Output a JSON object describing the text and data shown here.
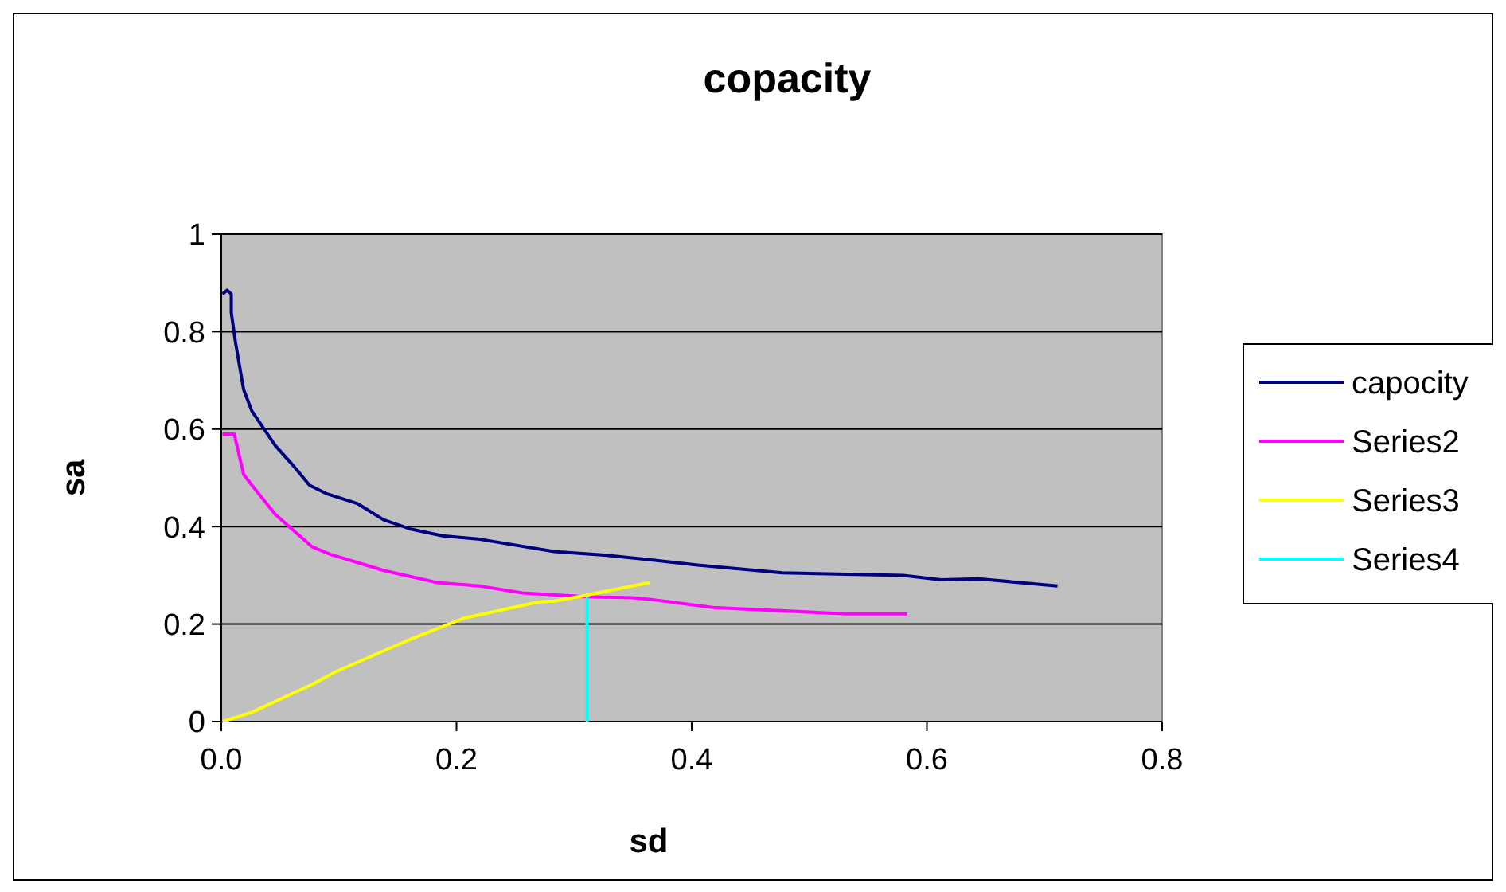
{
  "chart_data": {
    "type": "line",
    "title": "copacity",
    "xlabel": "sd",
    "ylabel": "sa",
    "xlim": [
      0,
      0.8
    ],
    "ylim": [
      0,
      1
    ],
    "xticks": [
      {
        "value": 0,
        "label": "0.0"
      },
      {
        "value": 0.2,
        "label": "0.2"
      },
      {
        "value": 0.4,
        "label": "0.4"
      },
      {
        "value": 0.6,
        "label": "0.6"
      },
      {
        "value": 0.8,
        "label": "0.8"
      }
    ],
    "yticks": [
      0,
      {
        "value": 0.2,
        "label": "0.2"
      },
      {
        "value": 0.4,
        "label": "0.4"
      },
      {
        "value": 0.6,
        "label": "0.6"
      },
      {
        "value": 0.8,
        "label": "0.8"
      },
      1
    ],
    "grid": "y",
    "legend": "right",
    "marker": "none",
    "line_style": "solid",
    "series": [
      {
        "name": "capocity",
        "color": "#000080",
        "x": [
          0.001,
          0.005,
          0.0085,
          0.0085,
          0.012,
          0.019,
          0.026,
          0.046,
          0.062,
          0.075,
          0.089,
          0.116,
          0.138,
          0.161,
          0.188,
          0.22,
          0.283,
          0.328,
          0.364,
          0.405,
          0.477,
          0.58,
          0.612,
          0.644,
          0.711
        ],
        "values": [
          0.877,
          0.885,
          0.877,
          0.839,
          0.779,
          0.681,
          0.637,
          0.566,
          0.523,
          0.485,
          0.468,
          0.447,
          0.414,
          0.395,
          0.381,
          0.374,
          0.349,
          0.341,
          0.332,
          0.321,
          0.305,
          0.3,
          0.291,
          0.293,
          0.278
        ]
      },
      {
        "name": "Series2",
        "color": "#ff00ff",
        "x": [
          0.001,
          0.011,
          0.019,
          0.026,
          0.046,
          0.077,
          0.093,
          0.138,
          0.184,
          0.22,
          0.256,
          0.31,
          0.35,
          0.364,
          0.405,
          0.418,
          0.531,
          0.583
        ],
        "values": [
          0.59,
          0.59,
          0.507,
          0.485,
          0.425,
          0.359,
          0.343,
          0.31,
          0.285,
          0.278,
          0.264,
          0.256,
          0.254,
          0.251,
          0.238,
          0.234,
          0.221,
          0.221
        ]
      },
      {
        "name": "Series3",
        "color": "#ffff00",
        "x": [
          0.001,
          0.026,
          0.077,
          0.098,
          0.161,
          0.206,
          0.269,
          0.283,
          0.31,
          0.364
        ],
        "values": [
          0,
          0.019,
          0.076,
          0.103,
          0.169,
          0.212,
          0.245,
          0.247,
          0.259,
          0.285
        ]
      },
      {
        "name": "Series4",
        "color": "#00ffff",
        "x": [
          0.311,
          0.311
        ],
        "values": [
          0,
          0.255
        ]
      }
    ]
  }
}
